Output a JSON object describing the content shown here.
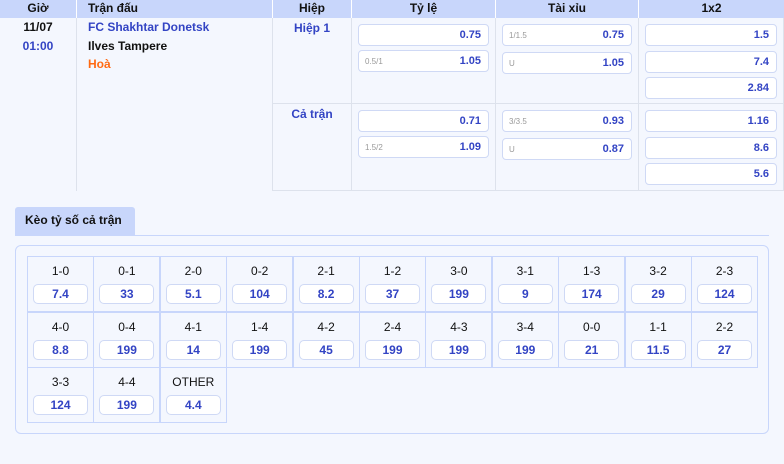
{
  "header": {
    "time": "Giờ",
    "match": "Trận đấu",
    "half": "Hiệp",
    "handicap": "Tỷ lệ",
    "overunder": "Tài xỉu",
    "x12": "1x2"
  },
  "match": {
    "date": "11/07",
    "time": "01:00",
    "home": "FC Shakhtar Donetsk",
    "away": "Ilves Tampere",
    "draw": "Hoà"
  },
  "periods": [
    {
      "label": "Hiệp 1",
      "handicap": [
        {
          "sub": "",
          "value": "0.75"
        },
        {
          "sub": "0.5/1",
          "value": "1.05"
        }
      ],
      "overunder": [
        {
          "sub": "1/1.5",
          "value": "0.75"
        },
        {
          "sub": "U",
          "value": "1.05"
        }
      ],
      "x12": [
        "1.5",
        "7.4",
        "2.84"
      ]
    },
    {
      "label": "Cả trận",
      "handicap": [
        {
          "sub": "",
          "value": "0.71"
        },
        {
          "sub": "1.5/2",
          "value": "1.09"
        }
      ],
      "overunder": [
        {
          "sub": "3/3.5",
          "value": "0.93"
        },
        {
          "sub": "U",
          "value": "0.87"
        }
      ],
      "x12": [
        "1.16",
        "8.6",
        "5.6"
      ]
    }
  ],
  "correct_score": {
    "tab": "Kèo tỷ số cả trận",
    "items": [
      {
        "score": "1-0",
        "odd": "7.4"
      },
      {
        "score": "0-1",
        "odd": "33"
      },
      {
        "score": "2-0",
        "odd": "5.1"
      },
      {
        "score": "0-2",
        "odd": "104"
      },
      {
        "score": "2-1",
        "odd": "8.2"
      },
      {
        "score": "1-2",
        "odd": "37"
      },
      {
        "score": "3-0",
        "odd": "199"
      },
      {
        "score": "3-1",
        "odd": "9"
      },
      {
        "score": "1-3",
        "odd": "174"
      },
      {
        "score": "3-2",
        "odd": "29"
      },
      {
        "score": "2-3",
        "odd": "124"
      },
      {
        "score": "4-0",
        "odd": "8.8"
      },
      {
        "score": "0-4",
        "odd": "199"
      },
      {
        "score": "4-1",
        "odd": "14"
      },
      {
        "score": "1-4",
        "odd": "199"
      },
      {
        "score": "4-2",
        "odd": "45"
      },
      {
        "score": "2-4",
        "odd": "199"
      },
      {
        "score": "4-3",
        "odd": "199"
      },
      {
        "score": "3-4",
        "odd": "199"
      },
      {
        "score": "0-0",
        "odd": "21"
      },
      {
        "score": "1-1",
        "odd": "11.5"
      },
      {
        "score": "2-2",
        "odd": "27"
      },
      {
        "score": "3-3",
        "odd": "124"
      },
      {
        "score": "4-4",
        "odd": "199"
      },
      {
        "score": "OTHER",
        "odd": "4.4"
      }
    ]
  }
}
